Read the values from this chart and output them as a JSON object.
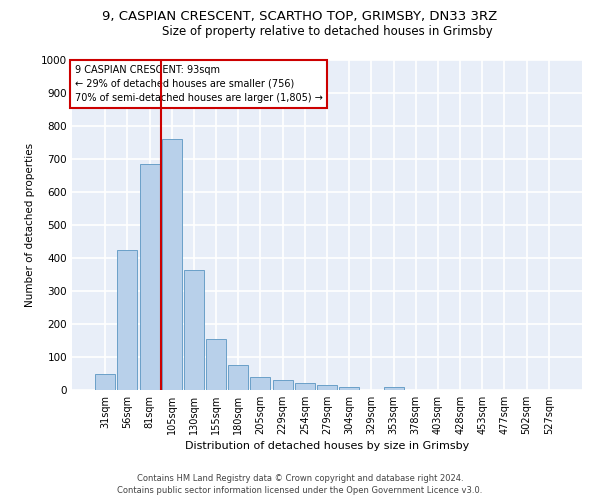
{
  "title1": "9, CASPIAN CRESCENT, SCARTHO TOP, GRIMSBY, DN33 3RZ",
  "title2": "Size of property relative to detached houses in Grimsby",
  "xlabel": "Distribution of detached houses by size in Grimsby",
  "ylabel": "Number of detached properties",
  "categories": [
    "31sqm",
    "56sqm",
    "81sqm",
    "105sqm",
    "130sqm",
    "155sqm",
    "180sqm",
    "205sqm",
    "229sqm",
    "254sqm",
    "279sqm",
    "304sqm",
    "329sqm",
    "353sqm",
    "378sqm",
    "403sqm",
    "428sqm",
    "453sqm",
    "477sqm",
    "502sqm",
    "527sqm"
  ],
  "values": [
    50,
    425,
    685,
    760,
    365,
    155,
    75,
    40,
    30,
    20,
    15,
    10,
    0,
    10,
    0,
    0,
    0,
    0,
    0,
    0,
    0
  ],
  "bar_color": "#b8d0ea",
  "bar_edge_color": "#6aa0c8",
  "vline_color": "#cc0000",
  "vline_x": 2.5,
  "annotation_line1": "9 CASPIAN CRESCENT: 93sqm",
  "annotation_line2": "← 29% of detached houses are smaller (756)",
  "annotation_line3": "70% of semi-detached houses are larger (1,805) →",
  "annotation_box_color": "#cc0000",
  "ylim": [
    0,
    1000
  ],
  "yticks": [
    0,
    100,
    200,
    300,
    400,
    500,
    600,
    700,
    800,
    900,
    1000
  ],
  "footer1": "Contains HM Land Registry data © Crown copyright and database right 2024.",
  "footer2": "Contains public sector information licensed under the Open Government Licence v3.0.",
  "bg_color": "#e8eef8",
  "grid_color": "#ffffff",
  "title1_fontsize": 9.5,
  "title2_fontsize": 8.5,
  "ann_fontsize": 7.0,
  "xlabel_fontsize": 8.0,
  "ylabel_fontsize": 7.5,
  "footer_fontsize": 6.0
}
